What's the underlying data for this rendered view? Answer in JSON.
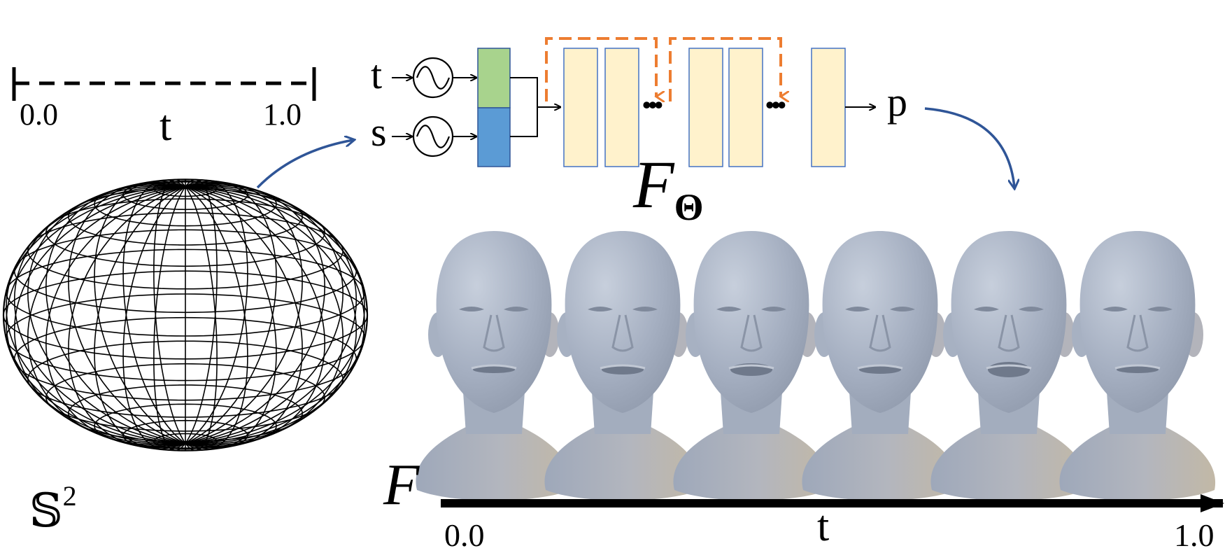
{
  "time_range_diagram": {
    "start_label": "0.0",
    "end_label": "1.0",
    "variable_label": "t"
  },
  "sphere": {
    "label": "𝕊",
    "label_exponent": "2"
  },
  "network": {
    "input_time_label": "t",
    "input_space_label": "s",
    "output_label": "p",
    "ellipsis_1": "•••",
    "ellipsis_2": "•••",
    "function_symbol": "F",
    "function_subscript": "Θ"
  },
  "sequence": {
    "function_label": "F",
    "axis_start_label": "0.0",
    "axis_end_label": "1.0",
    "axis_variable_label": "t",
    "head_count": 6
  },
  "colors": {
    "time_embedding": "#a8d38d",
    "space_embedding": "#5b9bd5",
    "layer_fill": "#fff2cc",
    "layer_stroke": "#4472c4",
    "skip_connection": "#ed7d31",
    "flow_arrow": "#2f5597",
    "head_surface": "#a7b1c2"
  }
}
